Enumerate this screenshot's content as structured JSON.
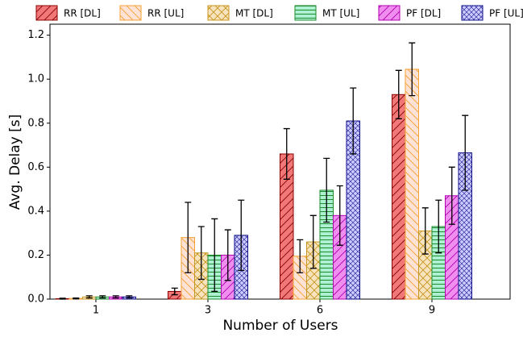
{
  "chart_data": {
    "type": "bar",
    "xlabel": "Number of Users",
    "ylabel": "Avg. Delay [s]",
    "categories": [
      "1",
      "3",
      "6",
      "9"
    ],
    "series": [
      {
        "name": "RR [DL]",
        "color": "#f07878",
        "edgecolor": "#8b0000",
        "hatch": "//",
        "values": [
          0.002,
          0.035,
          0.66,
          0.93
        ],
        "errors": [
          0.002,
          0.015,
          0.115,
          0.11
        ]
      },
      {
        "name": "RR [UL]",
        "color": "#fde2d6",
        "edgecolor": "#f5a030",
        "hatch": "\\",
        "values": [
          0.003,
          0.28,
          0.195,
          1.045
        ],
        "errors": [
          0.002,
          0.16,
          0.075,
          0.12
        ]
      },
      {
        "name": "MT [DL]",
        "color": "#f7e3bd",
        "edgecolor": "#c8961e",
        "hatch": "x",
        "values": [
          0.01,
          0.21,
          0.26,
          0.31
        ],
        "errors": [
          0.005,
          0.12,
          0.12,
          0.105
        ]
      },
      {
        "name": "MT [UL]",
        "color": "#adf0d2",
        "edgecolor": "#1f8b2c",
        "hatch": "-",
        "values": [
          0.01,
          0.2,
          0.495,
          0.33
        ],
        "errors": [
          0.005,
          0.165,
          0.145,
          0.12
        ]
      },
      {
        "name": "PF [DL]",
        "color": "#f08ef0",
        "edgecolor": "#b000b0",
        "hatch": "//",
        "values": [
          0.01,
          0.2,
          0.38,
          0.47
        ],
        "errors": [
          0.005,
          0.115,
          0.135,
          0.13
        ]
      },
      {
        "name": "PF [UL]",
        "color": "#cccaff",
        "edgecolor": "#10108a",
        "hatch": "xx",
        "values": [
          0.01,
          0.29,
          0.81,
          0.665
        ],
        "errors": [
          0.005,
          0.16,
          0.15,
          0.17
        ]
      }
    ],
    "ylim": [
      0,
      1.25
    ],
    "yticks": [
      {
        "value": 0,
        "label": "0.0"
      },
      0.2,
      0.4,
      0.6,
      0.8,
      {
        "value": 1,
        "label": "1.0"
      },
      1.2
    ],
    "grid": false,
    "legend": "top"
  }
}
